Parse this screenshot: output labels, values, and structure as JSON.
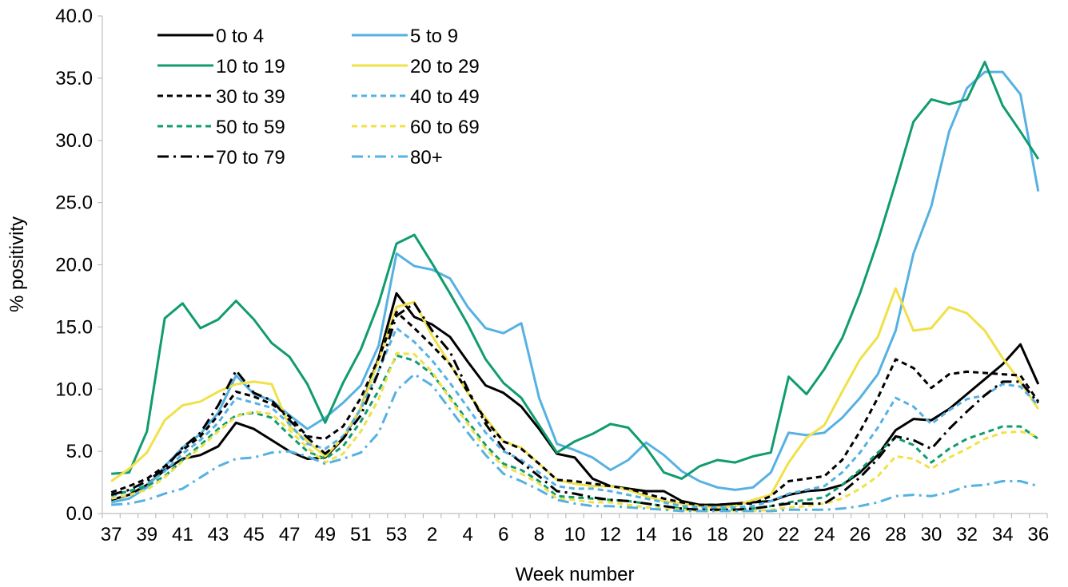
{
  "chart_data": {
    "type": "line",
    "xlabel": "Week number",
    "ylabel": "% positivity",
    "ylim": [
      0,
      40
    ],
    "yticks": [
      "0.0",
      "5.0",
      "10.0",
      "15.0",
      "20.0",
      "25.0",
      "30.0",
      "35.0",
      "40.0"
    ],
    "grid": false,
    "legend_position": "top-left",
    "x": [
      "37",
      "38",
      "39",
      "40",
      "41",
      "42",
      "43",
      "44",
      "45",
      "46",
      "47",
      "48",
      "49",
      "50",
      "51",
      "52",
      "53",
      "1",
      "2",
      "3",
      "4",
      "5",
      "6",
      "7",
      "8",
      "9",
      "10",
      "11",
      "12",
      "13",
      "14",
      "15",
      "16",
      "17",
      "18",
      "19",
      "20",
      "21",
      "22",
      "23",
      "24",
      "25",
      "26",
      "27",
      "28",
      "29",
      "30",
      "31",
      "32",
      "33",
      "34",
      "35",
      "36"
    ],
    "xtick_labels": [
      "37",
      "39",
      "41",
      "43",
      "45",
      "47",
      "49",
      "51",
      "53",
      "2",
      "4",
      "6",
      "8",
      "10",
      "12",
      "14",
      "16",
      "18",
      "20",
      "22",
      "24",
      "26",
      "28",
      "30",
      "32",
      "34",
      "36"
    ],
    "series": [
      {
        "name": "0 to 4",
        "color": "#000000",
        "dash": "solid",
        "values": [
          1.1,
          1.5,
          2.3,
          3.5,
          4.4,
          4.7,
          5.4,
          7.3,
          6.8,
          5.9,
          5.0,
          4.4,
          4.5,
          6.0,
          8.5,
          12.5,
          17.7,
          15.8,
          15.2,
          14.2,
          12.2,
          10.3,
          9.7,
          8.6,
          6.8,
          4.8,
          4.5,
          2.8,
          2.2,
          2.0,
          1.8,
          1.8,
          1.0,
          0.7,
          0.7,
          0.8,
          0.9,
          1.0,
          1.5,
          1.8,
          1.9,
          2.3,
          3.3,
          4.7,
          6.7,
          7.6,
          7.5,
          8.4,
          9.6,
          10.8,
          12.0,
          13.6,
          10.4
        ]
      },
      {
        "name": "5 to 9",
        "color": "#56b1e3",
        "dash": "solid",
        "values": [
          0.9,
          1.2,
          2.1,
          3.8,
          5.3,
          6.4,
          8.1,
          11.1,
          9.6,
          9.1,
          7.9,
          6.8,
          7.7,
          8.9,
          10.3,
          13.5,
          20.9,
          19.9,
          19.6,
          18.9,
          16.6,
          14.9,
          14.5,
          15.3,
          9.3,
          5.6,
          5.1,
          4.5,
          3.5,
          4.3,
          5.7,
          4.7,
          3.4,
          2.6,
          2.1,
          1.9,
          2.1,
          3.3,
          6.5,
          6.3,
          6.5,
          7.7,
          9.3,
          11.2,
          14.7,
          20.9,
          24.7,
          30.7,
          34.2,
          35.5,
          35.5,
          33.7,
          25.9
        ]
      },
      {
        "name": "10 to 19",
        "color": "#109c6e",
        "dash": "solid",
        "values": [
          3.2,
          3.3,
          6.6,
          15.7,
          16.9,
          14.9,
          15.6,
          17.1,
          15.6,
          13.7,
          12.6,
          10.4,
          7.3,
          10.5,
          13.2,
          16.9,
          21.7,
          22.4,
          20.1,
          17.7,
          15.2,
          12.4,
          10.5,
          9.3,
          7.1,
          4.9,
          5.8,
          6.4,
          7.2,
          6.9,
          5.3,
          3.3,
          2.8,
          3.8,
          4.3,
          4.1,
          4.6,
          4.9,
          11.0,
          9.6,
          11.6,
          14.1,
          17.7,
          21.9,
          26.6,
          31.5,
          33.3,
          32.9,
          33.3,
          36.3,
          32.8,
          30.7,
          28.5
        ]
      },
      {
        "name": "20 to 29",
        "color": "#f0e14a",
        "dash": "solid",
        "values": [
          2.6,
          3.6,
          4.9,
          7.5,
          8.7,
          9.0,
          9.8,
          10.4,
          10.6,
          10.4,
          7.0,
          5.8,
          4.6,
          6.1,
          8.5,
          12.3,
          16.6,
          17.0,
          14.3,
          12.0,
          9.7,
          7.7,
          5.8,
          5.3,
          4.0,
          2.7,
          2.4,
          2.2,
          2.2,
          1.9,
          1.4,
          1.0,
          0.8,
          0.6,
          0.5,
          0.6,
          1.1,
          1.5,
          4.1,
          6.1,
          7.1,
          9.8,
          12.4,
          14.2,
          18.1,
          14.7,
          14.9,
          16.6,
          16.1,
          14.7,
          12.5,
          10.6,
          8.4
        ]
      },
      {
        "name": "30 to 39",
        "color": "#000000",
        "dash": "dashed",
        "values": [
          1.7,
          2.2,
          2.8,
          3.8,
          5.1,
          6.2,
          7.9,
          9.8,
          9.4,
          8.8,
          7.8,
          6.2,
          6.0,
          7.0,
          9.3,
          12.5,
          16.2,
          14.9,
          13.5,
          12.0,
          9.8,
          7.5,
          5.8,
          5.2,
          4.0,
          2.7,
          2.6,
          2.4,
          2.2,
          2.0,
          1.6,
          1.2,
          0.9,
          0.7,
          0.7,
          0.8,
          0.8,
          1.4,
          2.6,
          2.8,
          3.0,
          4.3,
          6.6,
          9.3,
          12.4,
          11.7,
          10.1,
          11.2,
          11.4,
          11.3,
          11.2,
          11.1,
          9.0
        ]
      },
      {
        "name": "40 to 49",
        "color": "#56b1e3",
        "dash": "dashed",
        "values": [
          1.4,
          1.8,
          2.3,
          3.4,
          4.8,
          5.9,
          7.3,
          9.3,
          8.9,
          8.5,
          7.2,
          5.6,
          5.2,
          6.2,
          8.4,
          11.5,
          14.9,
          13.8,
          12.3,
          10.5,
          8.5,
          6.5,
          5.0,
          4.3,
          3.3,
          2.2,
          2.0,
          2.0,
          1.8,
          1.5,
          1.2,
          0.9,
          0.6,
          0.5,
          0.5,
          0.5,
          0.6,
          1.0,
          1.6,
          1.9,
          2.2,
          3.3,
          4.9,
          6.9,
          9.3,
          8.6,
          7.2,
          8.3,
          9.2,
          9.5,
          10.4,
          10.2,
          8.7
        ]
      },
      {
        "name": "50 to 59",
        "color": "#109c6e",
        "dash": "dashed",
        "values": [
          1.5,
          1.8,
          2.2,
          3.0,
          4.3,
          5.5,
          6.8,
          7.9,
          8.1,
          7.7,
          6.3,
          5.0,
          4.4,
          5.4,
          7.4,
          9.9,
          12.7,
          12.3,
          11.2,
          9.4,
          7.4,
          5.5,
          4.0,
          3.5,
          2.6,
          1.4,
          1.3,
          1.2,
          1.1,
          1.0,
          0.8,
          0.6,
          0.4,
          0.3,
          0.3,
          0.3,
          0.4,
          0.6,
          0.9,
          1.1,
          1.3,
          2.3,
          3.5,
          4.9,
          6.1,
          5.5,
          4.1,
          5.2,
          6.0,
          6.5,
          7.0,
          7.0,
          6.0
        ]
      },
      {
        "name": "60 to 69",
        "color": "#f0e14a",
        "dash": "dashed",
        "values": [
          1.2,
          1.5,
          1.9,
          2.9,
          4.2,
          5.3,
          6.6,
          7.8,
          8.2,
          8.0,
          6.7,
          5.3,
          4.1,
          4.8,
          6.6,
          9.2,
          12.9,
          12.8,
          11.4,
          9.2,
          7.2,
          5.2,
          3.8,
          3.2,
          2.4,
          1.2,
          1.1,
          0.9,
          0.9,
          0.7,
          0.5,
          0.4,
          0.3,
          0.2,
          0.2,
          0.2,
          0.2,
          0.3,
          0.5,
          0.6,
          0.8,
          1.2,
          2.0,
          3.0,
          4.6,
          4.4,
          3.6,
          4.5,
          5.2,
          6.0,
          6.5,
          6.6,
          6.2
        ]
      },
      {
        "name": "70 to 79",
        "color": "#000000",
        "dash": "dashdot",
        "values": [
          1.5,
          1.9,
          2.6,
          3.6,
          5.3,
          6.5,
          8.7,
          11.5,
          9.7,
          9.1,
          7.5,
          6.1,
          4.8,
          6.0,
          7.9,
          11.4,
          15.9,
          16.9,
          14.7,
          13.0,
          10.0,
          7.2,
          5.2,
          4.1,
          3.0,
          1.8,
          1.6,
          1.3,
          1.1,
          1.0,
          0.8,
          0.6,
          0.4,
          0.3,
          0.3,
          0.3,
          0.4,
          0.6,
          0.8,
          0.8,
          0.8,
          1.7,
          2.9,
          4.4,
          6.2,
          5.9,
          5.2,
          6.8,
          8.2,
          9.5,
          10.6,
          10.6,
          8.9
        ]
      },
      {
        "name": "80+",
        "color": "#56b1e3",
        "dash": "dashdot",
        "values": [
          0.7,
          0.8,
          1.1,
          1.6,
          2.0,
          2.9,
          3.8,
          4.4,
          4.5,
          4.9,
          5.0,
          4.6,
          4.0,
          4.4,
          4.9,
          6.5,
          9.9,
          11.2,
          10.3,
          8.4,
          6.5,
          4.7,
          3.2,
          2.6,
          1.9,
          1.1,
          0.8,
          0.6,
          0.6,
          0.5,
          0.4,
          0.3,
          0.2,
          0.2,
          0.2,
          0.2,
          0.2,
          0.2,
          0.3,
          0.3,
          0.3,
          0.4,
          0.6,
          0.9,
          1.4,
          1.5,
          1.4,
          1.7,
          2.2,
          2.3,
          2.6,
          2.6,
          2.2
        ]
      }
    ]
  }
}
